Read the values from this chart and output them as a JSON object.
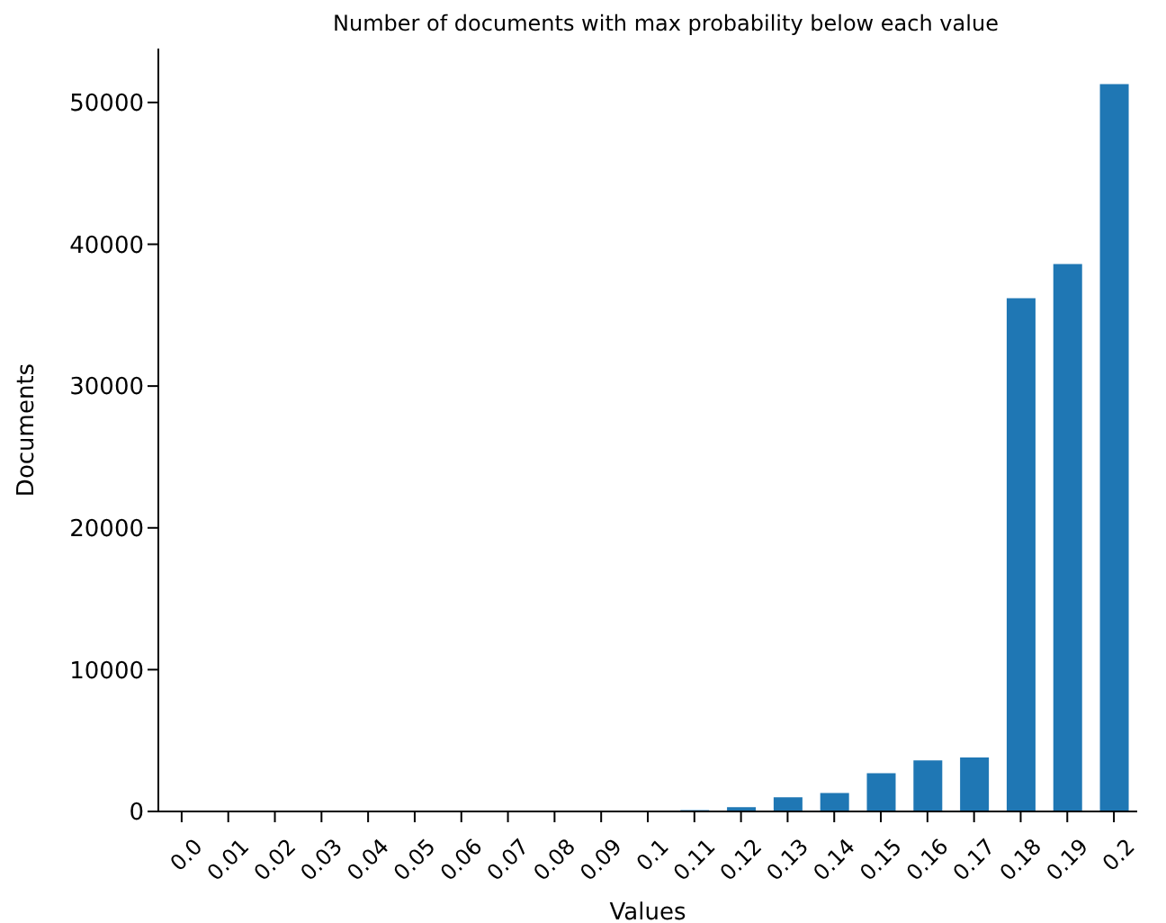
{
  "chart_data": {
    "type": "bar",
    "title": "Number of documents with max probability below each value",
    "xlabel": "Values",
    "ylabel": "Documents",
    "categories": [
      "0.0",
      "0.01",
      "0.02",
      "0.03",
      "0.04",
      "0.05",
      "0.06",
      "0.07",
      "0.08",
      "0.09",
      "0.1",
      "0.11",
      "0.12",
      "0.13",
      "0.14",
      "0.15",
      "0.16",
      "0.17",
      "0.18",
      "0.19",
      "0.2"
    ],
    "values": [
      0,
      0,
      0,
      0,
      0,
      0,
      0,
      0,
      0,
      0,
      0,
      100,
      300,
      1000,
      1300,
      2700,
      3600,
      3800,
      36200,
      38600,
      51300
    ],
    "color": "#1f77b4",
    "ylim": [
      0,
      53800
    ],
    "yticks": [
      0,
      10000,
      20000,
      30000,
      40000,
      50000
    ]
  }
}
